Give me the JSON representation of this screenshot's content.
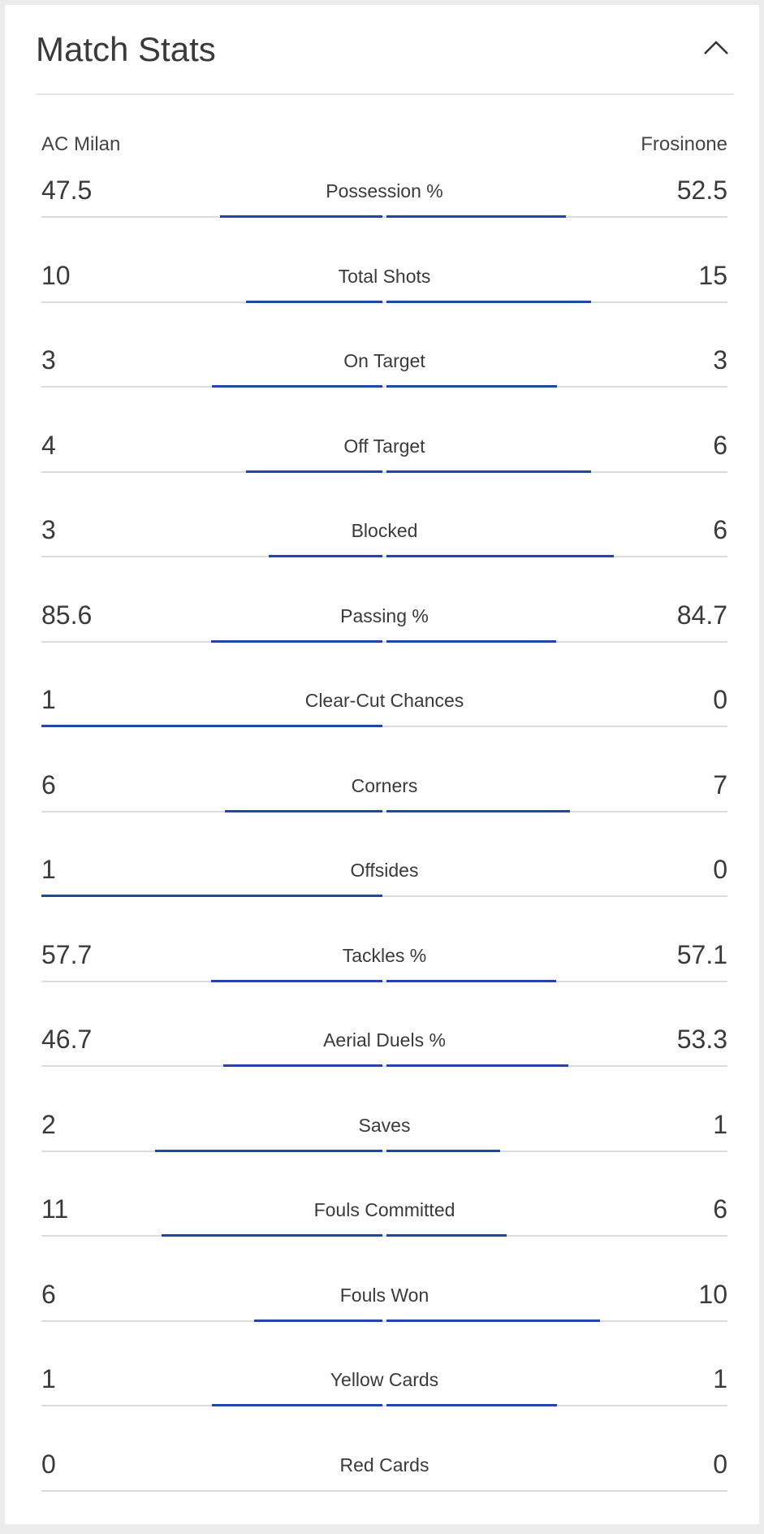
{
  "header": {
    "title": "Match Stats"
  },
  "teams": {
    "home": "AC Milan",
    "away": "Frosinone"
  },
  "colors": {
    "bar": "#1f47a6",
    "track": "#dcdcdc"
  },
  "stats": [
    {
      "label": "Possession %",
      "home": "47.5",
      "away": "52.5",
      "home_share": 0.475,
      "away_share": 0.525
    },
    {
      "label": "Total Shots",
      "home": "10",
      "away": "15",
      "home_share": 0.4,
      "away_share": 0.6
    },
    {
      "label": "On Target",
      "home": "3",
      "away": "3",
      "home_share": 0.5,
      "away_share": 0.5
    },
    {
      "label": "Off Target",
      "home": "4",
      "away": "6",
      "home_share": 0.4,
      "away_share": 0.6
    },
    {
      "label": "Blocked",
      "home": "3",
      "away": "6",
      "home_share": 0.333,
      "away_share": 0.667
    },
    {
      "label": "Passing %",
      "home": "85.6",
      "away": "84.7",
      "home_share": 0.503,
      "away_share": 0.497
    },
    {
      "label": "Clear-Cut Chances",
      "home": "1",
      "away": "0",
      "home_share": 1.0,
      "away_share": 0.0
    },
    {
      "label": "Corners",
      "home": "6",
      "away": "7",
      "home_share": 0.462,
      "away_share": 0.538
    },
    {
      "label": "Offsides",
      "home": "1",
      "away": "0",
      "home_share": 1.0,
      "away_share": 0.0
    },
    {
      "label": "Tackles %",
      "home": "57.7",
      "away": "57.1",
      "home_share": 0.503,
      "away_share": 0.497
    },
    {
      "label": "Aerial Duels %",
      "home": "46.7",
      "away": "53.3",
      "home_share": 0.467,
      "away_share": 0.533
    },
    {
      "label": "Saves",
      "home": "2",
      "away": "1",
      "home_share": 0.667,
      "away_share": 0.333
    },
    {
      "label": "Fouls Committed",
      "home": "11",
      "away": "6",
      "home_share": 0.647,
      "away_share": 0.353
    },
    {
      "label": "Fouls Won",
      "home": "6",
      "away": "10",
      "home_share": 0.375,
      "away_share": 0.625
    },
    {
      "label": "Yellow Cards",
      "home": "1",
      "away": "1",
      "home_share": 0.5,
      "away_share": 0.5
    },
    {
      "label": "Red Cards",
      "home": "0",
      "away": "0",
      "home_share": 0.0,
      "away_share": 0.0
    }
  ]
}
